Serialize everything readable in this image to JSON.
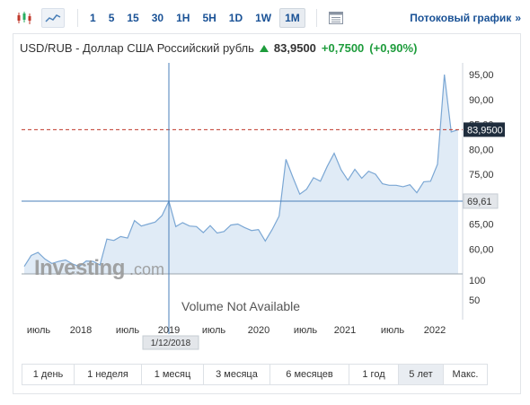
{
  "toolbar": {
    "chart_type_icons": [
      "candlestick-icon",
      "line-chart-icon"
    ],
    "timeframes": [
      "1",
      "5",
      "15",
      "30",
      "1H",
      "5H",
      "1D",
      "1W",
      "1M"
    ],
    "active_timeframe": "1M",
    "streaming_link": "Потоковый график",
    "streaming_arrow": "»"
  },
  "header": {
    "title": "USD/RUB - Доллар США Российский рубль",
    "price": "83,9500",
    "change": "+0,7500",
    "change_pct": "(+0,90%)"
  },
  "chart_data": {
    "type": "area",
    "title": "USD/RUB - Доллар США Российский рубль",
    "watermark": "Investing.com",
    "volume_text": "Volume Not Available",
    "x_tick_labels": [
      "июль",
      "2018",
      "июль",
      "2019",
      "июль",
      "2020",
      "июль",
      "2021",
      "июль",
      "2022"
    ],
    "y_tick_labels": [
      "60,00",
      "65,00",
      "70,00",
      "75,00",
      "80,00",
      "85,00",
      "90,00",
      "95,00"
    ],
    "volume_tick_labels": [
      "100",
      "50"
    ],
    "ylim": [
      55,
      97
    ],
    "current_price_label": "83,9500",
    "crosshair_price_label": "69,61",
    "crosshair_date_label": "1/12/2018",
    "colors": {
      "line": "#7ba7d4",
      "fill": "#dbe8f5",
      "price_line": "#c0392b",
      "crosshair": "#4a7fb8"
    },
    "series": [
      {
        "values": [
          56.5,
          58.7,
          59.3,
          58.0,
          57.1,
          57.5,
          57.8,
          57.0,
          56.5,
          57.6,
          57.5,
          56.8,
          62.0,
          61.7,
          62.5,
          62.2,
          65.7,
          64.6,
          65.0,
          65.4,
          66.7,
          69.6,
          64.5,
          65.3,
          64.6,
          64.5,
          63.3,
          64.7,
          63.2,
          63.5,
          64.8,
          65.0,
          64.3,
          63.7,
          63.9,
          61.6,
          63.9,
          66.6,
          78.0,
          74.4,
          71.0,
          72.0,
          74.3,
          73.6,
          76.6,
          79.2,
          75.9,
          73.8,
          76.0,
          74.2,
          75.6,
          75.0,
          73.1,
          72.8,
          72.8,
          72.5,
          72.9,
          71.3,
          73.5,
          73.6,
          77.0,
          95.0,
          83.5,
          83.95
        ]
      }
    ]
  },
  "range_buttons": [
    "1 день",
    "1 неделя",
    "1 месяц",
    "3 месяца",
    "6 месяцев",
    "1 год",
    "5 лет",
    "Макс."
  ],
  "active_range": "5 лет"
}
